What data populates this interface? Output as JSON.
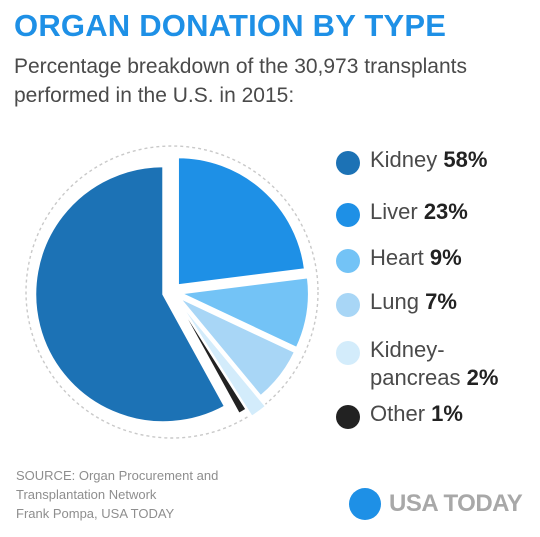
{
  "title": "ORGAN DONATION BY TYPE",
  "subtitle": "Percentage breakdown of the 30,973 transplants performed in the U.S. in 2015:",
  "chart_data": {
    "type": "pie",
    "title": "ORGAN DONATION BY TYPE",
    "subtitle": "Percentage breakdown of the 30,973 transplants performed in the U.S. in 2015:",
    "categories": [
      "Kidney",
      "Liver",
      "Heart",
      "Lung",
      "Kidney-pancreas",
      "Other"
    ],
    "values": [
      58,
      23,
      9,
      7,
      2,
      1
    ],
    "colors": [
      "#1c72b5",
      "#1e90e6",
      "#73c3f6",
      "#a8d6f6",
      "#d3ecfb",
      "#222222"
    ],
    "legend_position": "right"
  },
  "legend": [
    {
      "label": "Kidney",
      "value": "58%"
    },
    {
      "label": "Liver",
      "value": "23%"
    },
    {
      "label": "Heart",
      "value": "9%"
    },
    {
      "label": "Lung",
      "value": "7%"
    },
    {
      "label": "Kidney-",
      "label2": "pancreas",
      "value": "2%"
    },
    {
      "label": "Other",
      "value": "1%"
    }
  ],
  "source": {
    "line1": "SOURCE:  Organ Procurement and",
    "line2": "Transplantation Network",
    "line3": "Frank Pompa, USA TODAY"
  },
  "brand": {
    "name": "USA TODAY",
    "color": "#1e90e6"
  }
}
